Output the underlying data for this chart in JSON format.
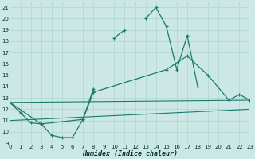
{
  "bg_color": "#cce8e5",
  "grid_color": "#b0d4d0",
  "line_color": "#1a7a6e",
  "xlabel": "Humidex (Indice chaleur)",
  "xlim": [
    0,
    23
  ],
  "ylim": [
    9,
    21.5
  ],
  "yticks": [
    9,
    10,
    11,
    12,
    13,
    14,
    15,
    16,
    17,
    18,
    19,
    20,
    21
  ],
  "xticks": [
    0,
    1,
    2,
    3,
    4,
    5,
    6,
    7,
    8,
    9,
    10,
    11,
    12,
    13,
    14,
    15,
    16,
    17,
    18,
    19,
    20,
    21,
    22,
    23
  ],
  "line1_segments": [
    {
      "x": [
        0,
        1,
        2,
        3,
        4,
        5,
        6,
        7,
        8
      ],
      "y": [
        12.6,
        11.7,
        10.8,
        10.7,
        9.7,
        9.5,
        9.5,
        11.1,
        13.8
      ]
    },
    {
      "x": [
        10,
        11
      ],
      "y": [
        18.3,
        19.0
      ]
    },
    {
      "x": [
        13,
        14,
        15,
        16,
        17,
        18
      ],
      "y": [
        20.0,
        21.0,
        19.3,
        15.5,
        18.5,
        14.0
      ]
    }
  ],
  "line2": {
    "x": [
      0,
      3,
      7,
      8,
      15,
      17,
      19,
      21,
      22,
      23
    ],
    "y": [
      12.6,
      10.7,
      11.1,
      13.5,
      15.5,
      16.7,
      15.0,
      12.8,
      13.3,
      12.8
    ]
  },
  "line3": {
    "x": [
      0,
      23
    ],
    "y": [
      12.6,
      12.8
    ]
  },
  "line4": {
    "x": [
      0,
      23
    ],
    "y": [
      11.0,
      12.0
    ]
  }
}
